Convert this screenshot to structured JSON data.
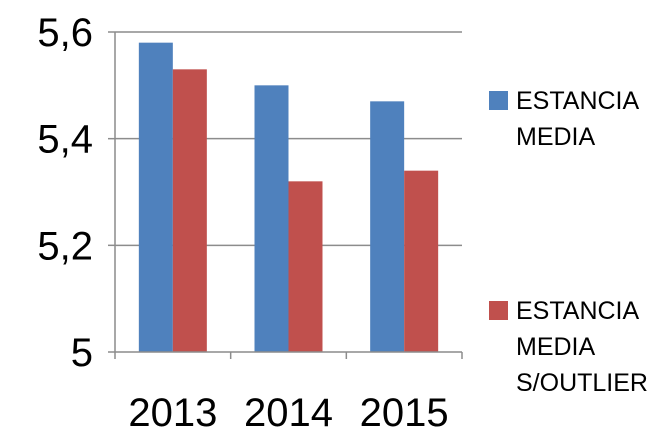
{
  "chart_data": {
    "type": "bar",
    "categories": [
      "2013",
      "2014",
      "2015"
    ],
    "series": [
      {
        "name": "ESTANCIA MEDIA",
        "values": [
          5.58,
          5.5,
          5.47
        ],
        "color": "#4f81bd"
      },
      {
        "name": "ESTANCIA MEDIA S/OUTLIER",
        "values": [
          5.53,
          5.32,
          5.34
        ],
        "color": "#c0504d"
      }
    ],
    "legend_lines": [
      [
        "ESTANCIA",
        "MEDIA"
      ],
      [
        "ESTANCIA",
        "MEDIA",
        "S/OUTLIER"
      ]
    ],
    "y_ticks": [
      {
        "value": 5.0,
        "label": "5"
      },
      {
        "value": 5.2,
        "label": "5,2"
      },
      {
        "value": 5.4,
        "label": "5,4"
      },
      {
        "value": 5.6,
        "label": "5,6"
      }
    ],
    "ylim": [
      5.0,
      5.6
    ],
    "grid": true,
    "legend_position": "right",
    "title": "",
    "xlabel": "",
    "ylabel": ""
  }
}
